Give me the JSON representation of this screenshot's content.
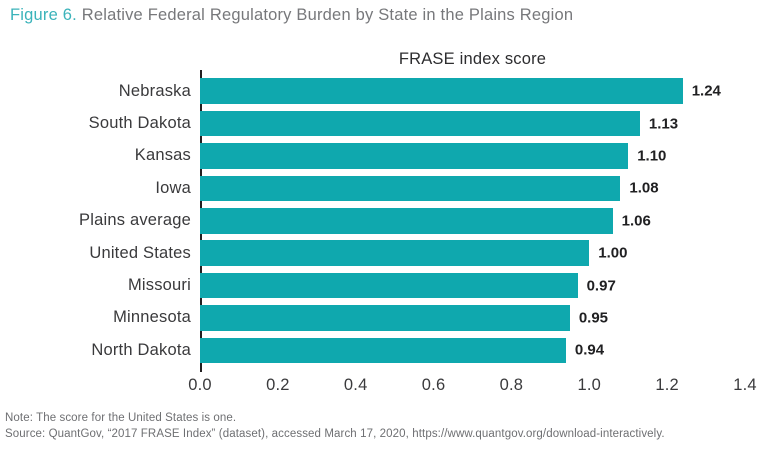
{
  "figure": {
    "label": "Figure 6.",
    "title": " Relative Federal Regulatory Burden by State in the Plains Region"
  },
  "chart_data": {
    "type": "bar",
    "orientation": "horizontal",
    "title": "FRASE index score",
    "categories": [
      "Nebraska",
      "South Dakota",
      "Kansas",
      "Iowa",
      "Plains average",
      "United States",
      "Missouri",
      "Minnesota",
      "North Dakota"
    ],
    "values": [
      1.24,
      1.13,
      1.1,
      1.08,
      1.06,
      1.0,
      0.97,
      0.95,
      0.94
    ],
    "value_labels": [
      "1.24",
      "1.13",
      "1.10",
      "1.08",
      "1.06",
      "1.00",
      "0.97",
      "0.95",
      "0.94"
    ],
    "xlabel": "",
    "ylabel": "",
    "xlim": [
      0,
      1.4
    ],
    "x_ticks": [
      "0.0",
      "0.2",
      "0.4",
      "0.6",
      "0.8",
      "1.0",
      "1.2",
      "1.4"
    ],
    "grid": false,
    "legend": "none",
    "bar_color": "#0FA8AE",
    "axis_color": "#231F20"
  },
  "footer": {
    "note": "Note: The score for the United States is one.",
    "source": "Source: QuantGov, “2017 FRASE Index” (dataset), accessed March 17, 2020, https://www.quantgov.org/download-interactively."
  },
  "colors": {
    "accent_teal": "#0FA8AE",
    "figure_label_teal": "#3BB3BA",
    "title_gray": "#77787B",
    "text_dark": "#3A3A3C",
    "footer_gray": "#6E6F72"
  }
}
